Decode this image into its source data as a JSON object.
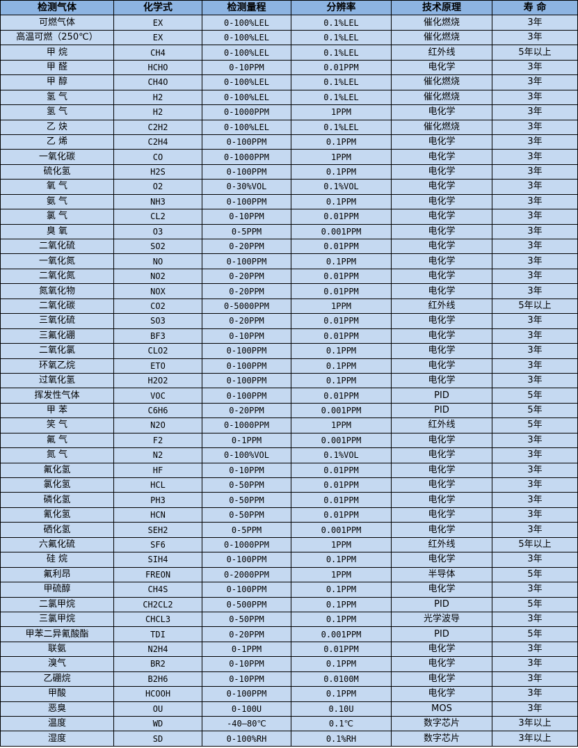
{
  "colors": {
    "header_bg": "#8DB4E2",
    "row_bg": "#C5D9F1",
    "border": "#000000"
  },
  "headers": [
    "检测气体",
    "化学式",
    "检测量程",
    "分辨率",
    "技术原理",
    "寿 命"
  ],
  "rows": [
    [
      "可燃气体",
      "EX",
      "0-100%LEL",
      "0.1%LEL",
      "催化燃烧",
      "3年"
    ],
    [
      "高温可燃（250℃）",
      "EX",
      "0-100%LEL",
      "0.1%LEL",
      "催化燃烧",
      "3年"
    ],
    [
      "甲 烷",
      "CH4",
      "0-100%LEL",
      "0.1%LEL",
      "红外线",
      "5年以上"
    ],
    [
      "甲 醛",
      "HCHO",
      "0-10PPM",
      "0.01PPM",
      "电化学",
      "3年"
    ],
    [
      "甲 醇",
      "CH4O",
      "0-100%LEL",
      "0.1%LEL",
      "催化燃烧",
      "3年"
    ],
    [
      "氢 气",
      "H2",
      "0-100%LEL",
      "0.1%LEL",
      "催化燃烧",
      "3年"
    ],
    [
      "氢 气",
      "H2",
      "0-1000PPM",
      "1PPM",
      "电化学",
      "3年"
    ],
    [
      "乙 炔",
      "C2H2",
      "0-100%LEL",
      "0.1%LEL",
      "催化燃烧",
      "3年"
    ],
    [
      "乙 烯",
      "C2H4",
      "0-100PPM",
      "0.1PPM",
      "电化学",
      "3年"
    ],
    [
      "一氧化碳",
      "CO",
      "0-1000PPM",
      "1PPM",
      "电化学",
      "3年"
    ],
    [
      "硫化氢",
      "H2S",
      "0-100PPM",
      "0.1PPM",
      "电化学",
      "3年"
    ],
    [
      "氧 气",
      "O2",
      "0-30%VOL",
      "0.1%VOL",
      "电化学",
      "3年"
    ],
    [
      "氨 气",
      "NH3",
      "0-100PPM",
      "0.1PPM",
      "电化学",
      "3年"
    ],
    [
      "氯 气",
      "CL2",
      "0-10PPM",
      "0.01PPM",
      "电化学",
      "3年"
    ],
    [
      "臭 氧",
      "O3",
      "0-5PPM",
      "0.001PPM",
      "电化学",
      "3年"
    ],
    [
      "二氧化硫",
      "SO2",
      "0-20PPM",
      "0.01PPM",
      "电化学",
      "3年"
    ],
    [
      "一氧化氮",
      "NO",
      "0-100PPM",
      "0.1PPM",
      "电化学",
      "3年"
    ],
    [
      "二氧化氮",
      "NO2",
      "0-20PPM",
      "0.01PPM",
      "电化学",
      "3年"
    ],
    [
      "氮氧化物",
      "NOX",
      "0-20PPM",
      "0.01PPM",
      "电化学",
      "3年"
    ],
    [
      "二氧化碳",
      "CO2",
      "0-5000PPM",
      "1PPM",
      "红外线",
      "5年以上"
    ],
    [
      "三氧化硫",
      "SO3",
      "0-20PPM",
      "0.01PPM",
      "电化学",
      "3年"
    ],
    [
      "三氟化硼",
      "BF3",
      "0-10PPM",
      "0.01PPM",
      "电化学",
      "3年"
    ],
    [
      "二氧化氯",
      "CLO2",
      "0-100PPM",
      "0.1PPM",
      "电化学",
      "3年"
    ],
    [
      "环氧乙烷",
      "ETO",
      "0-100PPM",
      "0.1PPM",
      "电化学",
      "3年"
    ],
    [
      "过氧化氢",
      "H2O2",
      "0-100PPM",
      "0.1PPM",
      "电化学",
      "3年"
    ],
    [
      "挥发性气体",
      "VOC",
      "0-100PPM",
      "0.01PPM",
      "PID",
      "5年"
    ],
    [
      "甲 苯",
      "C6H6",
      "0-20PPM",
      "0.001PPM",
      "PID",
      "5年"
    ],
    [
      "笑 气",
      "N2O",
      "0-1000PPM",
      "1PPM",
      "红外线",
      "5年"
    ],
    [
      "氟 气",
      "F2",
      "0-1PPM",
      "0.001PPM",
      "电化学",
      "3年"
    ],
    [
      "氮 气",
      "N2",
      "0-100%VOL",
      "0.1%VOL",
      "电化学",
      "3年"
    ],
    [
      "氟化氢",
      "HF",
      "0-10PPM",
      "0.01PPM",
      "电化学",
      "3年"
    ],
    [
      "氯化氢",
      "HCL",
      "0-50PPM",
      "0.01PPM",
      "电化学",
      "3年"
    ],
    [
      "磷化氢",
      "PH3",
      "0-50PPM",
      "0.01PPM",
      "电化学",
      "3年"
    ],
    [
      "氰化氢",
      "HCN",
      "0-50PPM",
      "0.01PPM",
      "电化学",
      "3年"
    ],
    [
      "硒化氢",
      "SEH2",
      "0-5PPM",
      "0.001PPM",
      "电化学",
      "3年"
    ],
    [
      "六氟化硫",
      "SF6",
      "0-1000PPM",
      "1PPM",
      "红外线",
      "5年以上"
    ],
    [
      "硅 烷",
      "SIH4",
      "0-100PPM",
      "0.1PPM",
      "电化学",
      "3年"
    ],
    [
      "氟利昂",
      "FREON",
      "0-2000PPM",
      "1PPM",
      "半导体",
      "5年"
    ],
    [
      "甲硫醇",
      "CH4S",
      "0-100PPM",
      "0.1PPM",
      "电化学",
      "3年"
    ],
    [
      "二氯甲烷",
      "CH2CL2",
      "0-500PPM",
      "0.1PPM",
      "PID",
      "5年"
    ],
    [
      "三氯甲烷",
      "CHCL3",
      "0-50PPM",
      "0.1PPM",
      "光学波导",
      "3年"
    ],
    [
      "甲苯二异氰酸酯",
      "TDI",
      "0-20PPM",
      "0.001PPM",
      "PID",
      "5年"
    ],
    [
      "联氨",
      "N2H4",
      "0-1PPM",
      "0.01PPM",
      "电化学",
      "3年"
    ],
    [
      "溴气",
      "BR2",
      "0-10PPM",
      "0.1PPM",
      "电化学",
      "3年"
    ],
    [
      "乙硼烷",
      "B2H6",
      "0-10PPM",
      "0.0100M",
      "电化学",
      "3年"
    ],
    [
      "甲酸",
      "HCOOH",
      "0-100PPM",
      "0.1PPM",
      "电化学",
      "3年"
    ],
    [
      "恶臭",
      "OU",
      "0-100U",
      "0.10U",
      "MOS",
      "3年"
    ],
    [
      "温度",
      "WD",
      "-40—80℃",
      "0.1℃",
      "数字芯片",
      "3年以上"
    ],
    [
      "湿度",
      "SD",
      "0-100%RH",
      "0.1%RH",
      "数字芯片",
      "3年以上"
    ]
  ]
}
